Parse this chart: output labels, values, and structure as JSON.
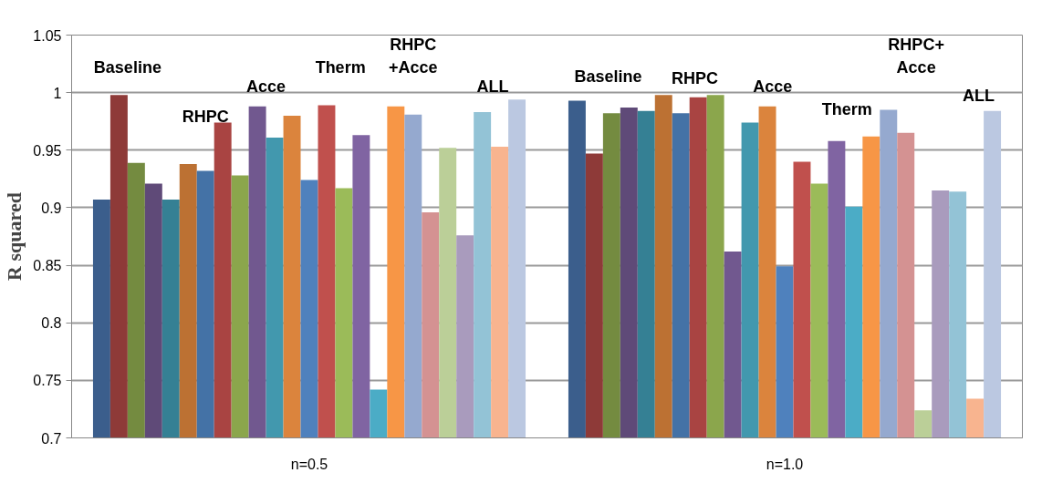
{
  "chart_data": {
    "type": "bar",
    "ylabel": "R squared",
    "categories": [
      "n=0.5",
      "n=1.0"
    ],
    "series": [
      {
        "color": "#3b5e8c",
        "values": [
          0.907,
          0.993
        ]
      },
      {
        "color": "#8e3a38",
        "values": [
          0.998,
          0.947
        ]
      },
      {
        "color": "#748b40",
        "values": [
          0.939,
          0.982
        ]
      },
      {
        "color": "#5f4a78",
        "values": [
          0.921,
          0.987
        ]
      },
      {
        "color": "#358094",
        "values": [
          0.907,
          0.984
        ]
      },
      {
        "color": "#bc7133",
        "values": [
          0.938,
          0.998
        ]
      },
      {
        "color": "#4472a6",
        "values": [
          0.932,
          0.982
        ]
      },
      {
        "color": "#a94442",
        "values": [
          0.974,
          0.996
        ]
      },
      {
        "color": "#8ba64c",
        "values": [
          0.928,
          0.998
        ]
      },
      {
        "color": "#71588f",
        "values": [
          0.988,
          0.862
        ]
      },
      {
        "color": "#4298ae",
        "values": [
          0.961,
          0.974
        ]
      },
      {
        "color": "#db843d",
        "values": [
          0.98,
          0.988
        ]
      },
      {
        "color": "#4f81bd",
        "values": [
          0.924,
          0.849
        ]
      },
      {
        "color": "#c0504d",
        "values": [
          0.989,
          0.94
        ]
      },
      {
        "color": "#9bbb59",
        "values": [
          0.917,
          0.921
        ]
      },
      {
        "color": "#8064a2",
        "values": [
          0.963,
          0.958
        ]
      },
      {
        "color": "#4bacc6",
        "values": [
          0.742,
          0.901
        ]
      },
      {
        "color": "#f79646",
        "values": [
          0.988,
          0.962
        ]
      },
      {
        "color": "#95a9cf",
        "values": [
          0.981,
          0.985
        ]
      },
      {
        "color": "#d49292",
        "values": [
          0.896,
          0.965
        ]
      },
      {
        "color": "#bbcf98",
        "values": [
          0.952,
          0.724
        ]
      },
      {
        "color": "#a99bbd",
        "values": [
          0.876,
          0.915
        ]
      },
      {
        "color": "#93c3d6",
        "values": [
          0.983,
          0.914
        ]
      },
      {
        "color": "#f8b48f",
        "values": [
          0.953,
          0.734
        ]
      },
      {
        "color": "#bbc8e1",
        "values": [
          0.994,
          0.984
        ]
      }
    ],
    "ylim": [
      0.7,
      1.05
    ],
    "yticks": [
      {
        "value": 0.7,
        "label": "0.7"
      },
      0.75,
      {
        "value": 0.8,
        "label": "0.8"
      },
      0.85,
      {
        "value": 0.9,
        "label": "0.9"
      },
      0.95,
      {
        "value": 1,
        "label": "1"
      },
      1.05
    ],
    "grid": "y",
    "annotations": [
      "Baseline",
      "RHPC",
      "Acce",
      "Therm",
      "RHPC\n+Acce",
      "ALL",
      "Baseline",
      "RHPC",
      "Acce",
      "Therm",
      "RHPC+\nAcce",
      "ALL"
    ]
  }
}
